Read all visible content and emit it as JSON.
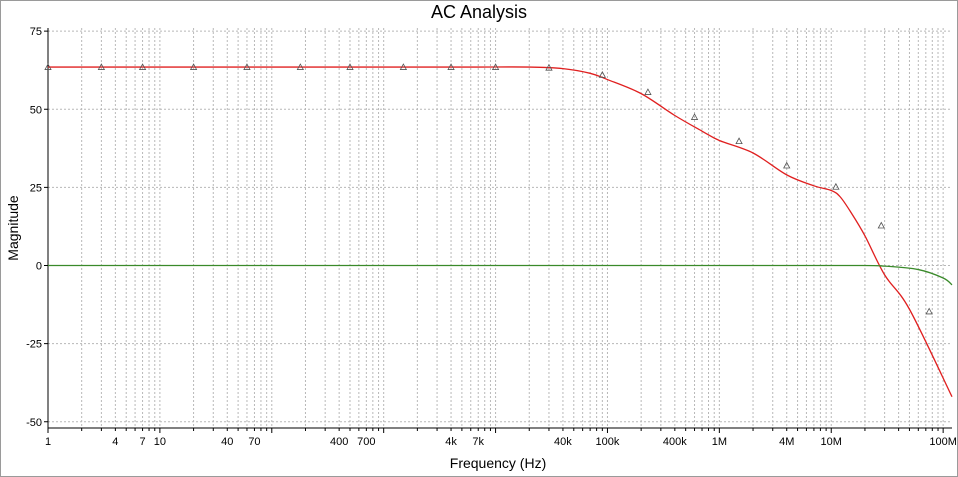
{
  "chart_data": {
    "type": "line",
    "title": "AC Analysis",
    "xlabel": "Frequency (Hz)",
    "ylabel": "Magnitude",
    "x_scale": "log",
    "xlim": [
      1,
      120000000
    ],
    "ylim": [
      -52,
      76
    ],
    "grid": true,
    "x_ticks": [
      {
        "value": 1,
        "label": "1"
      },
      {
        "value": 4,
        "label": "4"
      },
      {
        "value": 7,
        "label": "7"
      },
      {
        "value": 10,
        "label": "10"
      },
      {
        "value": 40,
        "label": "40"
      },
      {
        "value": 70,
        "label": "70"
      },
      {
        "value": 400,
        "label": "400"
      },
      {
        "value": 700,
        "label": "700"
      },
      {
        "value": 4000,
        "label": "4k"
      },
      {
        "value": 7000,
        "label": "7k"
      },
      {
        "value": 40000,
        "label": "40k"
      },
      {
        "value": 100000,
        "label": "100k"
      },
      {
        "value": 400000,
        "label": "400k"
      },
      {
        "value": 1000000,
        "label": "1M"
      },
      {
        "value": 4000000,
        "label": "4M"
      },
      {
        "value": 10000000,
        "label": "10M"
      },
      {
        "value": 100000000,
        "label": "100M"
      }
    ],
    "y_ticks": [
      {
        "value": 75,
        "label": "75"
      },
      {
        "value": 50,
        "label": "50"
      },
      {
        "value": 25,
        "label": "25"
      },
      {
        "value": 0,
        "label": "0"
      },
      {
        "value": -25,
        "label": "-25"
      },
      {
        "value": -50,
        "label": "-50"
      }
    ],
    "series": [
      {
        "color": "#e02020",
        "marker": "triangle",
        "x": [
          1,
          3,
          7,
          20,
          50,
          150,
          400,
          1000,
          3000,
          7000,
          20000,
          40000,
          70000,
          100000,
          200000,
          400000,
          700000,
          1000000,
          2000000,
          4000000,
          7000000,
          10000000,
          12000000,
          15000000,
          20000000,
          30000000,
          50000000,
          120000000
        ],
        "y": [
          63.5,
          63.5,
          63.5,
          63.5,
          63.5,
          63.5,
          63.5,
          63.5,
          63.5,
          63.5,
          63.5,
          63,
          61.5,
          59.5,
          55,
          48,
          43,
          40,
          36,
          29,
          25.5,
          24,
          22,
          17,
          9.5,
          -3,
          -14,
          -42
        ],
        "markers_x": [
          1,
          3,
          7,
          20,
          60,
          180,
          500,
          1500,
          4000,
          10000,
          30000,
          90000,
          230000,
          600000,
          1500000,
          4000000,
          11000000,
          28000000,
          75000000
        ],
        "markers_y": [
          63.5,
          63.5,
          63.5,
          63.5,
          63.5,
          63.5,
          63.5,
          63.5,
          63.5,
          63.5,
          63.3,
          61,
          55.5,
          47.5,
          39.8,
          32,
          25.2,
          12.8,
          -14.7
        ]
      },
      {
        "color": "#3a8a2a",
        "x": [
          1,
          1000,
          1000000,
          15000000,
          30000000,
          60000000,
          100000000,
          120000000
        ],
        "y": [
          0,
          0,
          0,
          0,
          -0.2,
          -1.3,
          -4,
          -6.2
        ]
      }
    ]
  }
}
